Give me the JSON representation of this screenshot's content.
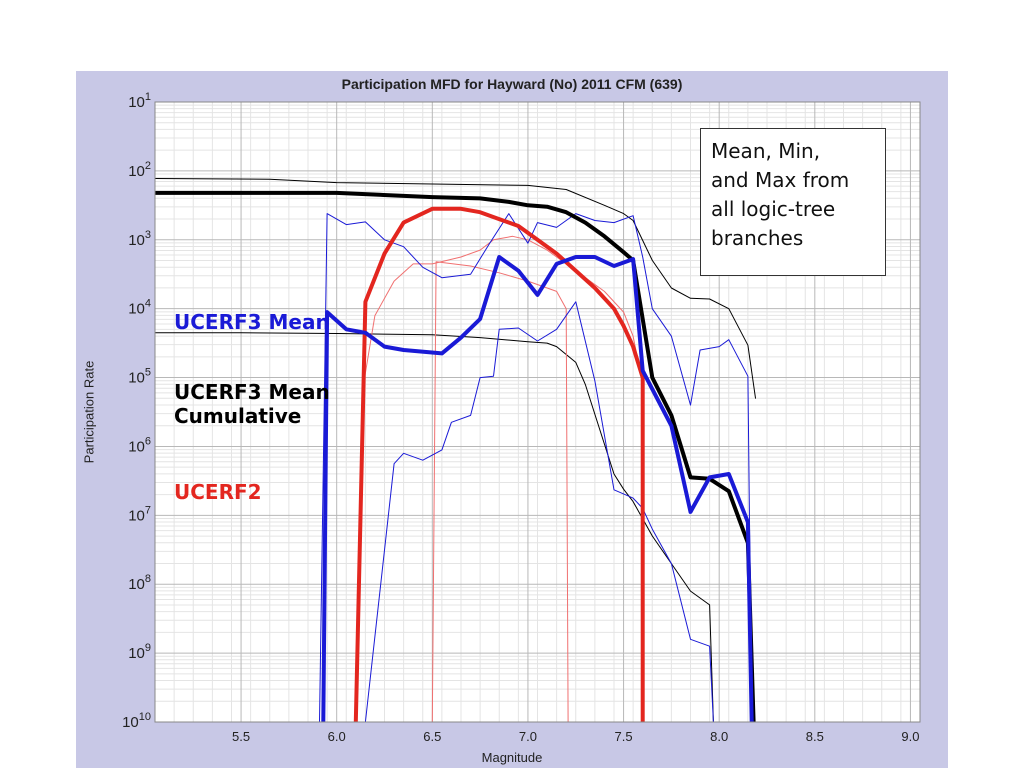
{
  "chart_data": {
    "type": "line",
    "title": "Participation MFD for Hayward (No) 2011 CFM (639)",
    "xlabel": "Magnitude",
    "ylabel": "Participation Rate",
    "xlim": [
      5.05,
      9.05
    ],
    "ylim_exponents": [
      1,
      10
    ],
    "y_scale": "log",
    "grid": true,
    "x_ticks": [
      {
        "value": 5.5,
        "label": "5.5"
      },
      {
        "value": 6.0,
        "label": "6.0"
      },
      {
        "value": 6.5,
        "label": "6.5"
      },
      {
        "value": 7.0,
        "label": "7.0"
      },
      {
        "value": 7.5,
        "label": "7.5"
      },
      {
        "value": 8.0,
        "label": "8.0"
      },
      {
        "value": 8.5,
        "label": "8.5"
      },
      {
        "value": 9.0,
        "label": "9.0"
      }
    ],
    "y_ticks": [
      {
        "exp": 1,
        "base": "10",
        "sup": "1"
      },
      {
        "exp": 2,
        "base": "10",
        "sup": "2"
      },
      {
        "exp": 3,
        "base": "10",
        "sup": "3"
      },
      {
        "exp": 4,
        "base": "10",
        "sup": "4"
      },
      {
        "exp": 5,
        "base": "10",
        "sup": "5"
      },
      {
        "exp": 6,
        "base": "10",
        "sup": "6"
      },
      {
        "exp": 7,
        "base": "10",
        "sup": "7"
      },
      {
        "exp": 8,
        "base": "10",
        "sup": "8"
      },
      {
        "exp": 9,
        "base": "10",
        "sup": "9"
      },
      {
        "exp": 10,
        "base": "10",
        "sup": "10"
      }
    ],
    "series": [
      {
        "key": "ucerf3-cum-max",
        "color": "#000000",
        "width": 1,
        "points": [
          [
            5.05,
            2.11
          ],
          [
            5.65,
            2.12
          ],
          [
            6.0,
            2.17
          ],
          [
            6.5,
            2.19
          ],
          [
            7.0,
            2.21
          ],
          [
            7.2,
            2.27
          ],
          [
            7.4,
            2.5
          ],
          [
            7.5,
            2.62
          ],
          [
            7.55,
            2.72
          ],
          [
            7.65,
            3.3
          ],
          [
            7.75,
            3.7
          ],
          [
            7.85,
            3.85
          ],
          [
            7.95,
            3.86
          ],
          [
            8.05,
            4.0
          ],
          [
            8.15,
            4.53
          ],
          [
            8.19,
            5.3
          ]
        ]
      },
      {
        "key": "ucerf3-cum-min",
        "color": "#000000",
        "width": 1,
        "points": [
          [
            5.05,
            4.35
          ],
          [
            5.5,
            4.35
          ],
          [
            6.0,
            4.36
          ],
          [
            6.5,
            4.38
          ],
          [
            6.75,
            4.42
          ],
          [
            7.0,
            4.48
          ],
          [
            7.1,
            4.5
          ],
          [
            7.15,
            4.55
          ],
          [
            7.25,
            4.78
          ],
          [
            7.3,
            5.1
          ],
          [
            7.45,
            6.4
          ],
          [
            7.5,
            6.62
          ],
          [
            7.55,
            6.8
          ],
          [
            7.65,
            7.3
          ],
          [
            7.75,
            7.7
          ],
          [
            7.85,
            8.1
          ],
          [
            7.95,
            8.3
          ],
          [
            7.97,
            10.0
          ]
        ]
      },
      {
        "key": "ucerf2-max",
        "color": "#f07070",
        "width": 1,
        "points": [
          [
            6.14,
            5.1
          ],
          [
            6.2,
            4.1
          ],
          [
            6.3,
            3.6
          ],
          [
            6.4,
            3.35
          ],
          [
            6.5,
            3.35
          ],
          [
            6.65,
            3.25
          ],
          [
            6.75,
            3.15
          ],
          [
            6.82,
            3.0
          ],
          [
            6.92,
            2.95
          ],
          [
            7.0,
            3.0
          ],
          [
            7.1,
            3.15
          ],
          [
            7.2,
            3.35
          ],
          [
            7.3,
            3.55
          ],
          [
            7.4,
            3.75
          ],
          [
            7.5,
            4.05
          ],
          [
            7.55,
            4.4
          ],
          [
            7.6,
            5.1
          ]
        ]
      },
      {
        "key": "ucerf2-min",
        "color": "#f07070",
        "width": 1,
        "points": [
          [
            6.5,
            10.0
          ],
          [
            6.52,
            3.32
          ],
          [
            6.7,
            3.38
          ],
          [
            6.85,
            3.48
          ],
          [
            7.0,
            3.6
          ],
          [
            7.15,
            3.75
          ],
          [
            7.2,
            4.0
          ],
          [
            7.21,
            10.0
          ]
        ]
      },
      {
        "key": "ucerf3-max",
        "color": "#1a1ad6",
        "width": 1,
        "points": [
          [
            5.91,
            10.0
          ],
          [
            5.95,
            2.62
          ],
          [
            6.05,
            2.78
          ],
          [
            6.15,
            2.74
          ],
          [
            6.25,
            3.0
          ],
          [
            6.35,
            3.1
          ],
          [
            6.45,
            3.4
          ],
          [
            6.55,
            3.55
          ],
          [
            6.7,
            3.5
          ],
          [
            6.8,
            3.05
          ],
          [
            6.9,
            2.62
          ],
          [
            7.0,
            3.05
          ],
          [
            7.05,
            2.75
          ],
          [
            7.15,
            2.82
          ],
          [
            7.25,
            2.62
          ],
          [
            7.35,
            2.72
          ],
          [
            7.45,
            2.75
          ],
          [
            7.55,
            2.65
          ],
          [
            7.6,
            3.25
          ],
          [
            7.65,
            4.0
          ],
          [
            7.75,
            4.4
          ],
          [
            7.85,
            5.4
          ],
          [
            7.9,
            4.6
          ],
          [
            8.0,
            4.55
          ],
          [
            8.05,
            4.45
          ],
          [
            8.15,
            4.98
          ],
          [
            8.17,
            10.0
          ]
        ]
      },
      {
        "key": "ucerf3-min",
        "color": "#1a1ad6",
        "width": 1,
        "points": [
          [
            6.15,
            10.0
          ],
          [
            6.3,
            6.25
          ],
          [
            6.35,
            6.1
          ],
          [
            6.45,
            6.2
          ],
          [
            6.55,
            6.05
          ],
          [
            6.6,
            5.65
          ],
          [
            6.7,
            5.55
          ],
          [
            6.75,
            5.0
          ],
          [
            6.82,
            4.98
          ],
          [
            6.85,
            4.3
          ],
          [
            6.95,
            4.28
          ],
          [
            7.05,
            4.47
          ],
          [
            7.15,
            4.3
          ],
          [
            7.25,
            3.9
          ],
          [
            7.35,
            5.05
          ],
          [
            7.45,
            6.63
          ],
          [
            7.55,
            6.75
          ],
          [
            7.6,
            6.9
          ],
          [
            7.65,
            7.2
          ],
          [
            7.75,
            7.7
          ],
          [
            7.85,
            8.8
          ],
          [
            7.95,
            8.9
          ],
          [
            7.97,
            10.0
          ]
        ]
      },
      {
        "key": "ucerf2-mean",
        "color": "#e3261f",
        "width": 4,
        "points": [
          [
            6.1,
            10.0
          ],
          [
            6.15,
            3.9
          ],
          [
            6.25,
            3.2
          ],
          [
            6.35,
            2.75
          ],
          [
            6.5,
            2.55
          ],
          [
            6.65,
            2.55
          ],
          [
            6.75,
            2.6
          ],
          [
            6.85,
            2.7
          ],
          [
            6.95,
            2.8
          ],
          [
            7.05,
            3.0
          ],
          [
            7.15,
            3.2
          ],
          [
            7.25,
            3.45
          ],
          [
            7.35,
            3.7
          ],
          [
            7.45,
            4.0
          ],
          [
            7.5,
            4.25
          ],
          [
            7.55,
            4.55
          ],
          [
            7.6,
            5.0
          ],
          [
            7.6,
            10.0
          ]
        ]
      },
      {
        "key": "ucerf3-cum",
        "color": "#000000",
        "width": 4,
        "points": [
          [
            5.05,
            2.32
          ],
          [
            5.5,
            2.32
          ],
          [
            6.0,
            2.32
          ],
          [
            6.5,
            2.38
          ],
          [
            6.75,
            2.4
          ],
          [
            6.9,
            2.45
          ],
          [
            7.0,
            2.5
          ],
          [
            7.1,
            2.52
          ],
          [
            7.2,
            2.6
          ],
          [
            7.3,
            2.75
          ],
          [
            7.4,
            2.95
          ],
          [
            7.5,
            3.18
          ],
          [
            7.55,
            3.3
          ],
          [
            7.65,
            5.0
          ],
          [
            7.75,
            5.55
          ],
          [
            7.85,
            6.45
          ],
          [
            7.95,
            6.47
          ],
          [
            8.05,
            6.65
          ],
          [
            8.15,
            7.4
          ],
          [
            8.18,
            10.0
          ]
        ]
      },
      {
        "key": "ucerf3-mean",
        "color": "#1a1ad6",
        "width": 4,
        "points": [
          [
            5.93,
            10.0
          ],
          [
            5.95,
            4.05
          ],
          [
            6.05,
            4.3
          ],
          [
            6.15,
            4.35
          ],
          [
            6.25,
            4.55
          ],
          [
            6.35,
            4.6
          ],
          [
            6.55,
            4.65
          ],
          [
            6.65,
            4.42
          ],
          [
            6.75,
            4.15
          ],
          [
            6.85,
            3.25
          ],
          [
            6.95,
            3.45
          ],
          [
            7.05,
            3.8
          ],
          [
            7.15,
            3.35
          ],
          [
            7.25,
            3.25
          ],
          [
            7.35,
            3.25
          ],
          [
            7.45,
            3.38
          ],
          [
            7.55,
            3.28
          ],
          [
            7.6,
            4.9
          ],
          [
            7.75,
            5.7
          ],
          [
            7.85,
            6.95
          ],
          [
            7.95,
            6.45
          ],
          [
            8.05,
            6.4
          ],
          [
            8.15,
            7.1
          ],
          [
            8.17,
            10.0
          ]
        ]
      }
    ]
  },
  "annotations": {
    "ucerf3_mean": "UCERF3 Mean",
    "ucerf3_cum_line1": "UCERF3 Mean",
    "ucerf3_cum_line2": "Cumulative",
    "ucerf2": "UCERF2"
  },
  "note_box": {
    "line1": "Mean, Min,",
    "line2": "and Max from",
    "line3": "all logic-tree",
    "line4": "branches"
  }
}
